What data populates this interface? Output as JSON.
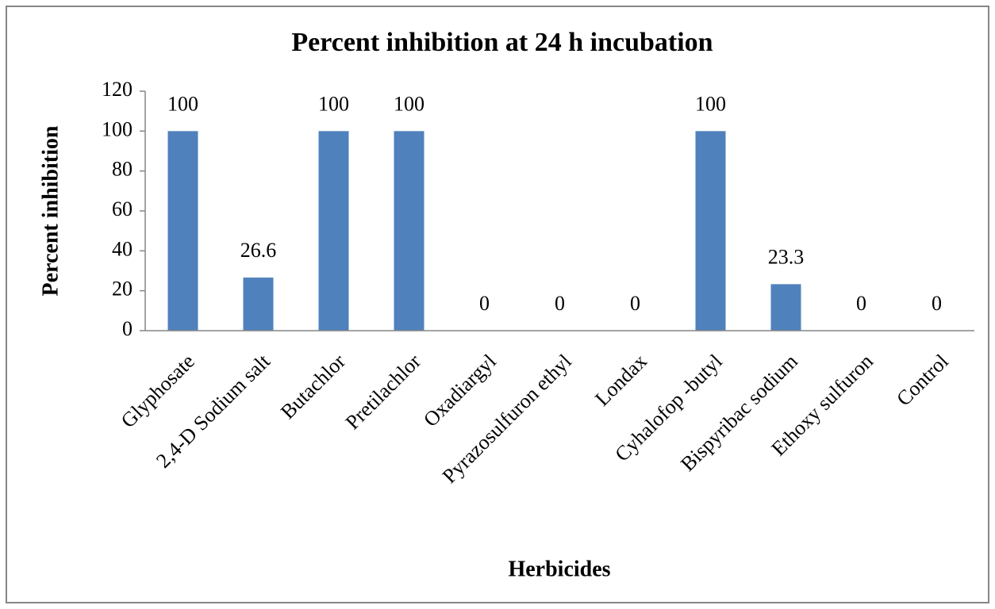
{
  "chart_data": {
    "type": "bar",
    "title": "Percent inhibition at 24 h incubation",
    "x_label": "Herbicides",
    "y_label": "Percent inhibition",
    "categories": [
      "Glyphosate",
      "2,4-D Sodium salt",
      "Butachlor",
      "Pretilachlor",
      "Oxadiargyl",
      "Pyrazosulfuron ethyl",
      "Londax",
      "Cyhalofop -butyl",
      "Bispyribac sodium",
      "Ethoxy sulfuron",
      "Control"
    ],
    "values": [
      100,
      26.6,
      100,
      100,
      0,
      0,
      0,
      100,
      23.3,
      0,
      0
    ],
    "color": "#4f81bd",
    "ylim": [
      0,
      120
    ],
    "yticks": [
      0,
      20,
      40,
      60,
      80,
      100,
      120
    ],
    "grid": false
  }
}
